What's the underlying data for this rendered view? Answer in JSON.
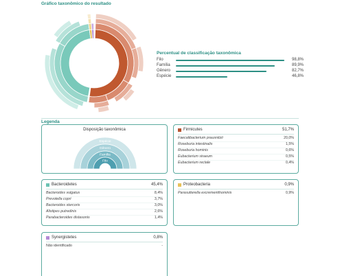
{
  "page": {
    "title": "Gráfico taxonômico do resultado"
  },
  "sunburst": {
    "icon": "sunburst-chart"
  },
  "percentages": {
    "title": "Percentual de classificação taxonômica",
    "rows": [
      {
        "label": "Filo",
        "value": "98,8%",
        "fraction": 0.988
      },
      {
        "label": "Família",
        "value": "89,9%",
        "fraction": 0.899
      },
      {
        "label": "Gênero",
        "value": "82,7%",
        "fraction": 0.827
      },
      {
        "label": "Espécie",
        "value": "46,8%",
        "fraction": 0.468
      }
    ]
  },
  "legend": {
    "title": "Legenda",
    "disposition": {
      "title": "Disposição taxonômica",
      "ranks": [
        "Espécie",
        "Gênero",
        "Família",
        "Filo"
      ],
      "colors": [
        "#cfe6ea",
        "#a8d2da",
        "#7bbac6",
        "#4e9fb0"
      ]
    },
    "groups": [
      {
        "name": "Firmicutes",
        "pct": "51,7%",
        "color": "#b5532f",
        "items": [
          {
            "name": "Faecalibacterium prausnitzii",
            "value": "20,0%"
          },
          {
            "name": "Roseburia intestinalis",
            "value": "1,5%"
          },
          {
            "name": "Roseburia hominis",
            "value": "0,6%"
          },
          {
            "name": "Eubacterium siraeum",
            "value": "0,5%"
          },
          {
            "name": "Eubacterium rectale",
            "value": "0,4%"
          }
        ]
      },
      {
        "name": "Bacteroidetes",
        "pct": "45,4%",
        "color": "#6cc3b3",
        "items": [
          {
            "name": "Bacteroides vulgatus",
            "value": "8,4%"
          },
          {
            "name": "Prevotella copri",
            "value": "3,7%"
          },
          {
            "name": "Bacteroides stercoris",
            "value": "3,0%"
          },
          {
            "name": "Alistipes putredinis",
            "value": "2,6%"
          },
          {
            "name": "Parabacteroides distasonis",
            "value": "1,4%"
          }
        ]
      },
      {
        "name": "Proteobacteria",
        "pct": "0,9%",
        "color": "#e8c25a",
        "items": [
          {
            "name": "Parasutterella excrementihominis",
            "value": "0,9%"
          }
        ]
      },
      {
        "name": "Synergistetes",
        "pct": "0,8%",
        "color": "#b48ad6",
        "items": [
          {
            "name": "Não identificado",
            "value": "-"
          }
        ]
      }
    ]
  }
}
